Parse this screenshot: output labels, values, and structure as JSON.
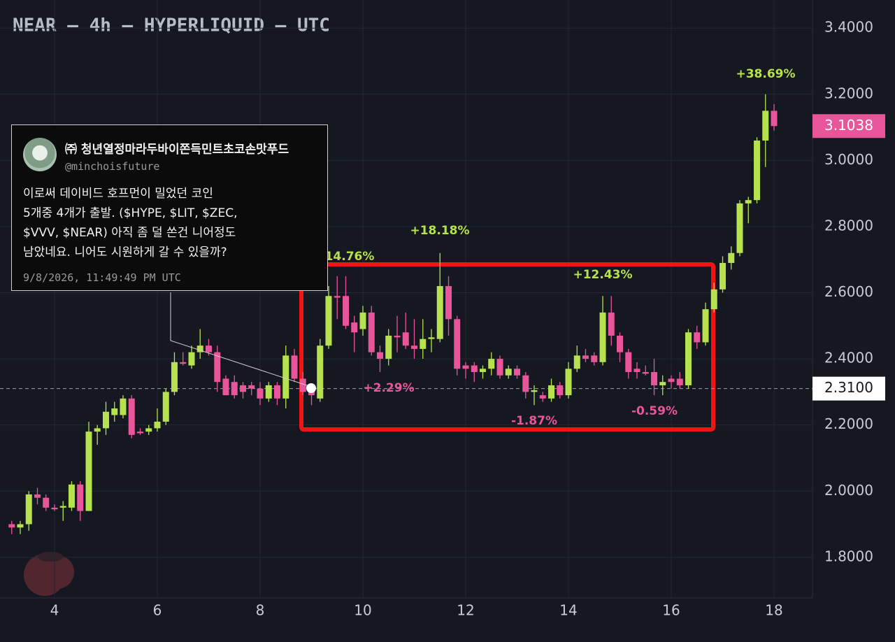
{
  "chart_data": {
    "type": "candlestick",
    "title": "NEAR — 4h — HYPERLIQUID — UTC",
    "up_color": "#b5e24e",
    "down_color": "#e9559b",
    "xlim": [
      2.939,
      18.748
    ],
    "ylim": [
      1.677,
      3.485
    ],
    "grid": true,
    "xticks": [
      4,
      6,
      8,
      10,
      12,
      14,
      16,
      18
    ],
    "yticks": [
      {
        "value": 1.8,
        "label": "1.8000"
      },
      {
        "value": 2.0,
        "label": "2.0000"
      },
      {
        "value": 2.2,
        "label": "2.2000"
      },
      {
        "value": 2.4,
        "label": "2.4000"
      },
      {
        "value": 2.6,
        "label": "2.6000"
      },
      {
        "value": 2.8,
        "label": "2.8000"
      },
      {
        "value": 3.0,
        "label": "3.0000"
      },
      {
        "value": 3.2,
        "label": "3.2000"
      },
      {
        "value": 3.4,
        "label": "3.4000"
      }
    ],
    "x": [
      3.167,
      3.333,
      3.5,
      3.667,
      3.833,
      4,
      4.167,
      4.333,
      4.5,
      4.667,
      4.833,
      5,
      5.167,
      5.333,
      5.5,
      5.667,
      5.833,
      6,
      6.167,
      6.333,
      6.5,
      6.667,
      6.833,
      7,
      7.167,
      7.333,
      7.5,
      7.667,
      7.833,
      8,
      8.167,
      8.333,
      8.5,
      8.667,
      8.833,
      9,
      9.167,
      9.333,
      9.5,
      9.667,
      9.833,
      10,
      10.167,
      10.333,
      10.5,
      10.667,
      10.833,
      11,
      11.167,
      11.333,
      11.5,
      11.667,
      11.833,
      12,
      12.167,
      12.333,
      12.5,
      12.667,
      12.833,
      13,
      13.167,
      13.333,
      13.5,
      13.667,
      13.833,
      14,
      14.167,
      14.333,
      14.5,
      14.667,
      14.833,
      15,
      15.167,
      15.333,
      15.5,
      15.667,
      15.833,
      16,
      16.167,
      16.333,
      16.5,
      16.667,
      16.833,
      17,
      17.167,
      17.333,
      17.5,
      17.667,
      17.833,
      18
    ],
    "open": [
      1.9,
      1.89,
      1.9,
      1.99,
      1.98,
      1.95,
      1.95,
      1.95,
      2.02,
      1.94,
      2.18,
      2.19,
      2.23,
      2.23,
      2.28,
      2.18,
      2.18,
      2.19,
      2.21,
      2.3,
      2.39,
      2.38,
      2.42,
      2.44,
      2.42,
      2.34,
      2.33,
      2.32,
      2.32,
      2.31,
      2.28,
      2.32,
      2.28,
      2.41,
      2.34,
      2.31,
      2.28,
      2.44,
      2.59,
      2.59,
      2.51,
      2.49,
      2.54,
      2.42,
      2.4,
      2.47,
      2.48,
      2.44,
      2.43,
      2.46,
      2.46,
      2.62,
      2.52,
      2.38,
      2.38,
      2.36,
      2.37,
      2.4,
      2.35,
      2.37,
      2.35,
      2.3,
      2.29,
      2.28,
      2.32,
      2.29,
      2.37,
      2.41,
      2.41,
      2.39,
      2.54,
      2.47,
      2.42,
      2.37,
      2.36,
      2.36,
      2.32,
      2.34,
      2.34,
      2.32,
      2.48,
      2.45,
      2.55,
      2.61,
      2.69,
      2.72,
      2.87,
      2.88,
      3.06,
      3.15
    ],
    "high": [
      1.91,
      1.91,
      2.0,
      2.01,
      1.99,
      1.96,
      1.97,
      2.03,
      2.03,
      2.21,
      2.2,
      2.27,
      2.27,
      2.29,
      2.29,
      2.19,
      2.2,
      2.25,
      2.31,
      2.42,
      2.42,
      2.44,
      2.49,
      2.46,
      2.44,
      2.35,
      2.35,
      2.33,
      2.33,
      2.33,
      2.33,
      2.33,
      2.44,
      2.43,
      2.36,
      2.32,
      2.46,
      2.62,
      2.65,
      2.65,
      2.53,
      2.56,
      2.56,
      2.44,
      2.49,
      2.53,
      2.54,
      2.52,
      2.52,
      2.49,
      2.72,
      2.65,
      2.53,
      2.39,
      2.39,
      2.38,
      2.42,
      2.41,
      2.38,
      2.38,
      2.36,
      2.32,
      2.3,
      2.34,
      2.33,
      2.39,
      2.44,
      2.43,
      2.42,
      2.59,
      2.59,
      2.48,
      2.43,
      2.39,
      2.38,
      2.4,
      2.35,
      2.35,
      2.36,
      2.49,
      2.5,
      2.57,
      2.63,
      2.71,
      2.74,
      2.88,
      2.89,
      3.07,
      3.2,
      3.17
    ],
    "low": [
      1.87,
      1.87,
      1.88,
      1.96,
      1.94,
      1.94,
      1.91,
      1.94,
      1.91,
      1.94,
      2.14,
      2.17,
      2.21,
      2.22,
      2.16,
      2.17,
      2.17,
      2.18,
      2.2,
      2.29,
      2.38,
      2.37,
      2.4,
      2.41,
      2.3,
      2.29,
      2.28,
      2.28,
      2.29,
      2.26,
      2.27,
      2.26,
      2.25,
      2.33,
      2.29,
      2.26,
      2.27,
      2.43,
      2.52,
      2.49,
      2.42,
      2.47,
      2.41,
      2.36,
      2.38,
      2.42,
      2.43,
      2.4,
      2.4,
      2.42,
      2.45,
      2.47,
      2.35,
      2.34,
      2.33,
      2.34,
      2.35,
      2.34,
      2.34,
      2.34,
      2.28,
      2.26,
      2.27,
      2.27,
      2.28,
      2.28,
      2.36,
      2.39,
      2.38,
      2.38,
      2.44,
      2.39,
      2.34,
      2.34,
      2.35,
      2.29,
      2.29,
      2.31,
      2.31,
      2.31,
      2.43,
      2.44,
      2.54,
      2.6,
      2.67,
      2.71,
      2.81,
      2.87,
      2.98,
      3.09
    ],
    "close": [
      1.89,
      1.9,
      1.99,
      1.98,
      1.95,
      1.945,
      1.955,
      2.02,
      1.94,
      2.18,
      2.19,
      2.24,
      2.25,
      2.28,
      2.17,
      2.175,
      2.19,
      2.21,
      2.3,
      2.39,
      2.385,
      2.42,
      2.44,
      2.42,
      2.33,
      2.29,
      2.29,
      2.3,
      2.31,
      2.28,
      2.32,
      2.28,
      2.41,
      2.34,
      2.3,
      2.29,
      2.44,
      2.59,
      2.585,
      2.5,
      2.48,
      2.54,
      2.42,
      2.4,
      2.47,
      2.465,
      2.44,
      2.43,
      2.46,
      2.465,
      2.62,
      2.52,
      2.37,
      2.37,
      2.36,
      2.37,
      2.4,
      2.35,
      2.37,
      2.35,
      2.3,
      2.305,
      2.28,
      2.32,
      2.29,
      2.37,
      2.41,
      2.4,
      2.39,
      2.54,
      2.47,
      2.42,
      2.36,
      2.36,
      2.355,
      2.32,
      2.33,
      2.33,
      2.32,
      2.48,
      2.45,
      2.55,
      2.61,
      2.69,
      2.72,
      2.87,
      2.88,
      3.06,
      3.15,
      3.1038
    ],
    "last_price": {
      "value": 3.1038,
      "label": "3.1038"
    },
    "price_line": {
      "value": 2.31,
      "label": "2.3100"
    },
    "annotations": [
      {
        "text": "+38.69%",
        "color": "#b5e24e"
      },
      {
        "text": "+18.18%",
        "color": "#b5e24e"
      },
      {
        "text": "14.76%",
        "color": "#b5e24e"
      },
      {
        "text": "+12.43%",
        "color": "#b5e24e"
      },
      {
        "text": "+2.29%",
        "color": "#e9559b"
      },
      {
        "text": "-1.87%",
        "color": "#e9559b"
      },
      {
        "text": "-0.59%",
        "color": "#e9559b"
      }
    ]
  },
  "tweet": {
    "name": "㈜ 청년열정마라두바이쫀득민트초코손맛푸드",
    "handle": "@minchoisfuture",
    "lines": [
      "이로써 데이비드 호프먼이 밀었던 코인",
      "5개중 4개가 출발. ($HYPE, $LIT, $ZEC,",
      "$VVV, $NEAR) 아직 좀 덜 쏜건 니어정도",
      "남았네요. 니어도 시원하게 갈 수 있을까?"
    ],
    "date": "9/8/2026, 11:49:49 PM UTC"
  }
}
